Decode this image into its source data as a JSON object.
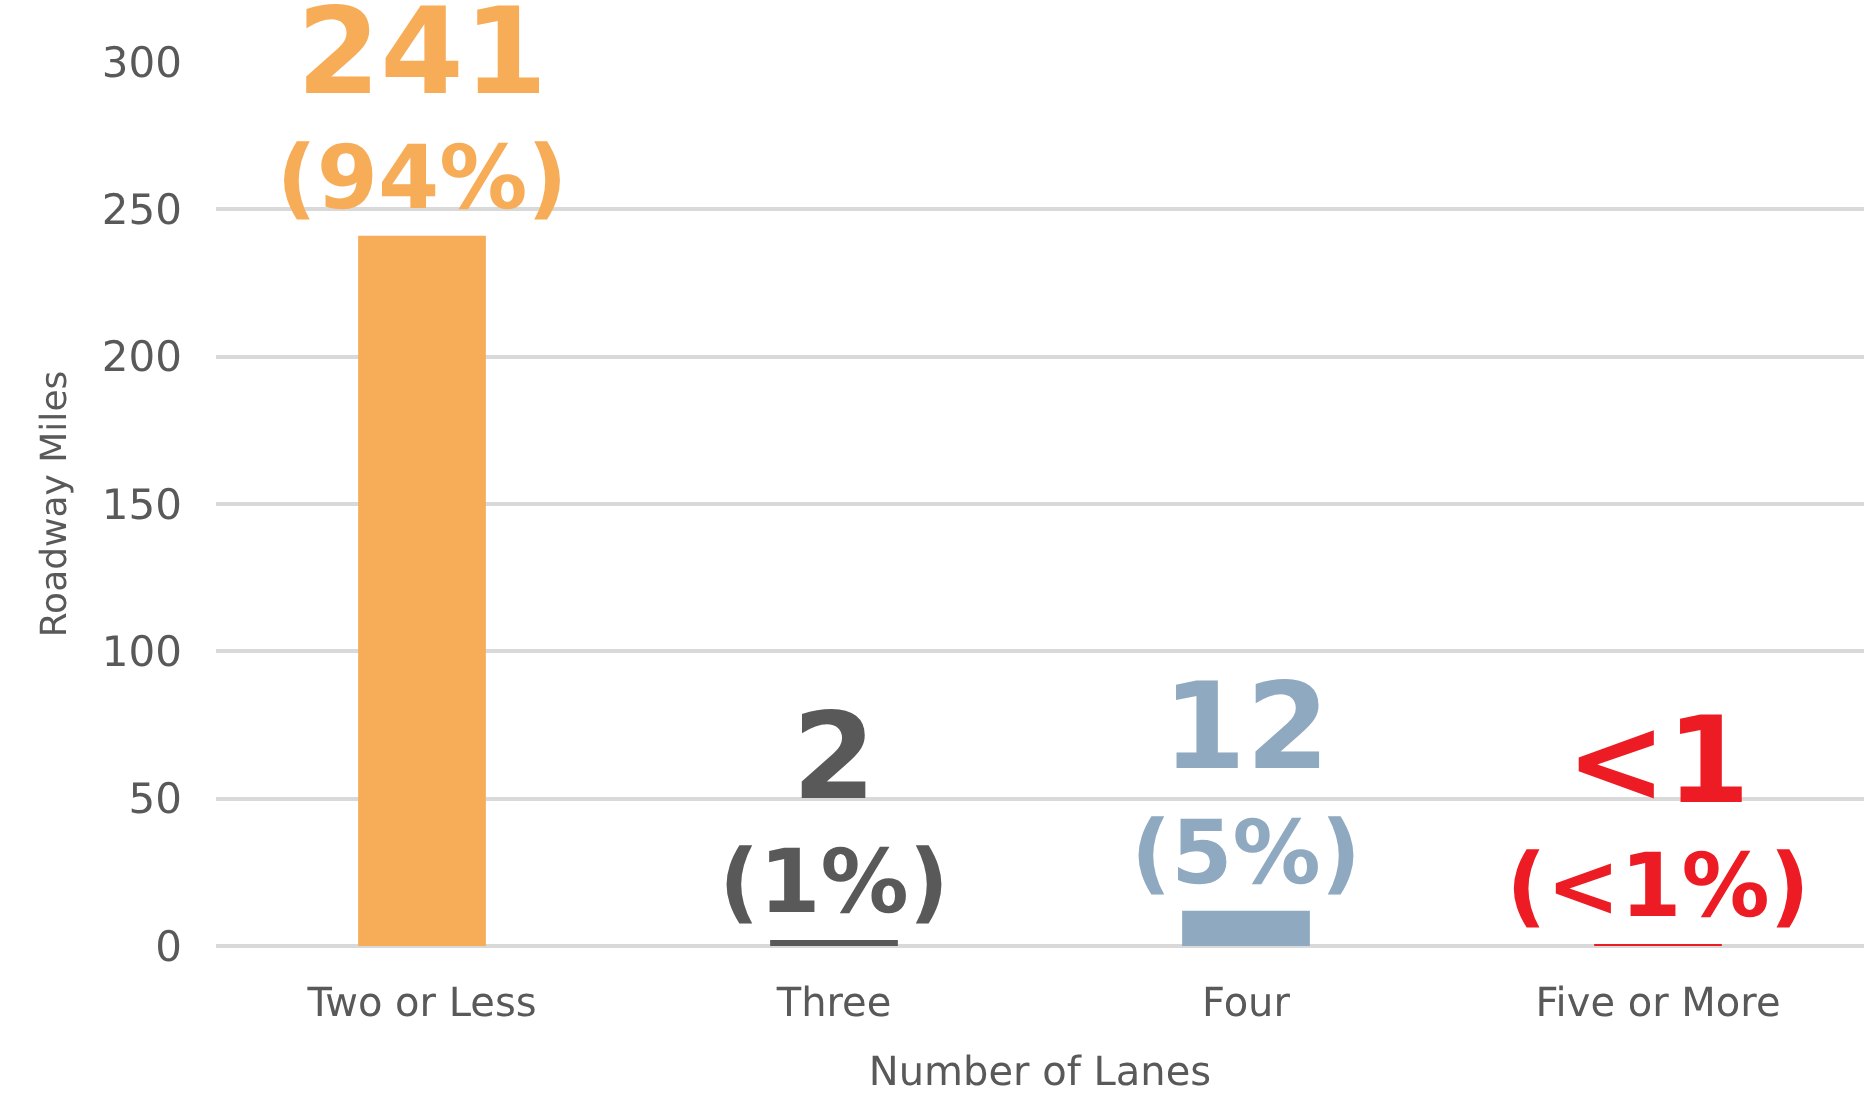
{
  "chart_data": {
    "type": "bar",
    "xlabel": "Number of Lanes",
    "ylabel": "Roadway Miles",
    "categories": [
      "Two or Less",
      "Three",
      "Four",
      "Five or More"
    ],
    "values": [
      241,
      2,
      12,
      0.5
    ],
    "colors": [
      "#f7ac57",
      "#595959",
      "#8fa9c0",
      "#ed1c24"
    ],
    "value_labels": [
      "241\n(94%)",
      "2\n(1%)",
      "12\n(5%)",
      "<1\n(<1%)"
    ],
    "ylim": [
      0,
      300
    ],
    "yticks": [
      0,
      50,
      100,
      150,
      200,
      250,
      300
    ],
    "grid": "y"
  }
}
